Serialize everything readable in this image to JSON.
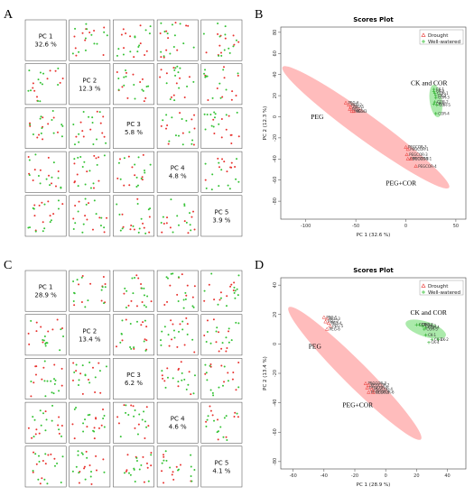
{
  "panel_letters": [
    "A",
    "B",
    "C",
    "D"
  ],
  "chart_data": [
    {
      "panel": "A",
      "type": "scatter-matrix",
      "components": [
        {
          "label": "PC 1",
          "variance": "32.6 %"
        },
        {
          "label": "PC 2",
          "variance": "12.3 %"
        },
        {
          "label": "PC 3",
          "variance": "5.8 %"
        },
        {
          "label": "PC 4",
          "variance": "4.8 %"
        },
        {
          "label": "PC 5",
          "variance": "3.9 %"
        }
      ],
      "colors": {
        "drought": "#e8332f",
        "well_watered": "#34c234"
      }
    },
    {
      "panel": "B",
      "type": "scatter",
      "title": "Scores Plot",
      "xlabel": "PC 1 (32.6 %)",
      "ylabel": "PC 2 (12.3 %)",
      "xlim": [
        -125,
        60
      ],
      "ylim": [
        -97,
        85
      ],
      "xticks": [
        -100,
        -50,
        0,
        50
      ],
      "yticks": [
        -80,
        -60,
        -40,
        -20,
        0,
        20,
        40,
        60,
        80
      ],
      "legend": {
        "position": "top-right",
        "entries": [
          {
            "name": "Drought",
            "marker": "triangle",
            "color": "#e8332f"
          },
          {
            "name": "Well-watered",
            "marker": "plus",
            "color": "#34c234"
          }
        ]
      },
      "ellipses": [
        {
          "cx": -40,
          "cy": -10,
          "rx": 100,
          "ry": 12,
          "angle": -36,
          "color": "#ff6b6b"
        },
        {
          "cx": 30,
          "cy": 15,
          "rx": 16,
          "ry": 6,
          "angle": -82,
          "color": "#44d044"
        }
      ],
      "annotations": [
        {
          "text": "CK and COR",
          "x": 5,
          "y": 30
        },
        {
          "text": "PEG",
          "x": -95,
          "y": -2
        },
        {
          "text": "PEG+COR",
          "x": -20,
          "y": -65
        }
      ],
      "series": [
        {
          "name": "Drought",
          "marker": "triangle",
          "points": [
            {
              "x": -60,
              "y": 13,
              "label": "PEG-6"
            },
            {
              "x": -57,
              "y": 11,
              "label": "PEG-2"
            },
            {
              "x": -55,
              "y": 9,
              "label": "PEG-5"
            },
            {
              "x": -56,
              "y": 7,
              "label": "PEG-1"
            },
            {
              "x": -54,
              "y": 5,
              "label": "PEG-4"
            },
            {
              "x": -52,
              "y": 5,
              "label": "PEG-3"
            },
            {
              "x": 0,
              "y": -29,
              "label": "PEGCOR-3"
            },
            {
              "x": 2,
              "y": -31,
              "label": "PEGCOR-1"
            },
            {
              "x": 1,
              "y": -36,
              "label": "PEGCOR-3"
            },
            {
              "x": 2,
              "y": -40,
              "label": "PEGCOR-2"
            },
            {
              "x": 5,
              "y": -40,
              "label": "PEGCOR-1"
            },
            {
              "x": 10,
              "y": -47,
              "label": "PEGCOR-4"
            }
          ]
        },
        {
          "name": "Well-watered",
          "marker": "plus",
          "points": [
            {
              "x": 28,
              "y": 26,
              "label": "CK-1"
            },
            {
              "x": 28,
              "y": 24,
              "label": "CK-2"
            },
            {
              "x": 29,
              "y": 22,
              "label": "COR-1"
            },
            {
              "x": 30,
              "y": 20,
              "label": "CK-3"
            },
            {
              "x": 30,
              "y": 18,
              "label": "COR-3"
            },
            {
              "x": 29,
              "y": 14,
              "label": "COR-2"
            },
            {
              "x": 28,
              "y": 12,
              "label": "CK-4"
            },
            {
              "x": 31,
              "y": 11,
              "label": "COR-5"
            },
            {
              "x": 30,
              "y": 3,
              "label": "COR-4"
            }
          ]
        }
      ]
    },
    {
      "panel": "C",
      "type": "scatter-matrix",
      "components": [
        {
          "label": "PC 1",
          "variance": "28.9 %"
        },
        {
          "label": "PC 2",
          "variance": "13.4 %"
        },
        {
          "label": "PC 3",
          "variance": "6.2 %"
        },
        {
          "label": "PC 4",
          "variance": "4.6 %"
        },
        {
          "label": "PC 5",
          "variance": "4.1 %"
        }
      ],
      "colors": {
        "drought": "#e8332f",
        "well_watered": "#34c234"
      }
    },
    {
      "panel": "D",
      "type": "scatter",
      "title": "Scores Plot",
      "xlabel": "PC 1 (28.9 %)",
      "ylabel": "PC 2 (13.4 %)",
      "xlim": [
        -68,
        52
      ],
      "ylim": [
        -85,
        45
      ],
      "xticks": [
        -60,
        -40,
        -20,
        0,
        20,
        40
      ],
      "yticks": [
        -80,
        -60,
        -40,
        -20,
        0,
        20,
        40
      ],
      "legend": {
        "position": "top-right",
        "entries": [
          {
            "name": "Drought",
            "marker": "triangle",
            "color": "#e8332f"
          },
          {
            "name": "Well-watered",
            "marker": "plus",
            "color": "#34c234"
          }
        ]
      },
      "ellipses": [
        {
          "cx": -20,
          "cy": -20,
          "rx": 62,
          "ry": 8,
          "angle": -45,
          "color": "#ff6b6b"
        },
        {
          "cx": 26,
          "cy": 10,
          "rx": 14,
          "ry": 5,
          "angle": -18,
          "color": "#44d044"
        }
      ],
      "annotations": [
        {
          "text": "CK and COR",
          "x": 16,
          "y": 20
        },
        {
          "text": "PEG",
          "x": -50,
          "y": -3
        },
        {
          "text": "PEG+COR",
          "x": -28,
          "y": -43
        }
      ],
      "series": [
        {
          "name": "Drought",
          "marker": "triangle",
          "points": [
            {
              "x": -40,
              "y": 18,
              "label": "PEG-1"
            },
            {
              "x": -38,
              "y": 17,
              "label": "PEG-3"
            },
            {
              "x": -39,
              "y": 15,
              "label": "PEG-2"
            },
            {
              "x": -37,
              "y": 14,
              "label": "PEG-4"
            },
            {
              "x": -36,
              "y": 12,
              "label": "PEG-5"
            },
            {
              "x": -38,
              "y": 10,
              "label": "PEG-6"
            },
            {
              "x": -13,
              "y": -27,
              "label": "PEGCOR-3"
            },
            {
              "x": -11,
              "y": -28,
              "label": "PEGCOR-2"
            },
            {
              "x": -12,
              "y": -30,
              "label": "PEGCOR-1"
            },
            {
              "x": -9,
              "y": -31,
              "label": "PEGCOR-4"
            },
            {
              "x": -11,
              "y": -33,
              "label": "PEGCOR-5"
            },
            {
              "x": -8,
              "y": -33,
              "label": "PEGCOR-6"
            }
          ]
        },
        {
          "name": "Well-watered",
          "marker": "plus",
          "points": [
            {
              "x": 20,
              "y": 13,
              "label": "COR-1"
            },
            {
              "x": 22,
              "y": 13,
              "label": "COR-2"
            },
            {
              "x": 24,
              "y": 12,
              "label": "COR-3"
            },
            {
              "x": 26,
              "y": 11,
              "label": "COR-4"
            },
            {
              "x": 25,
              "y": 10,
              "label": "COR-5"
            },
            {
              "x": 26,
              "y": 6,
              "label": "CK-1"
            },
            {
              "x": 30,
              "y": 3,
              "label": "CK-3"
            },
            {
              "x": 34,
              "y": 3,
              "label": "CK-2"
            },
            {
              "x": 28,
              "y": 1,
              "label": "CK-4"
            }
          ]
        }
      ]
    }
  ]
}
